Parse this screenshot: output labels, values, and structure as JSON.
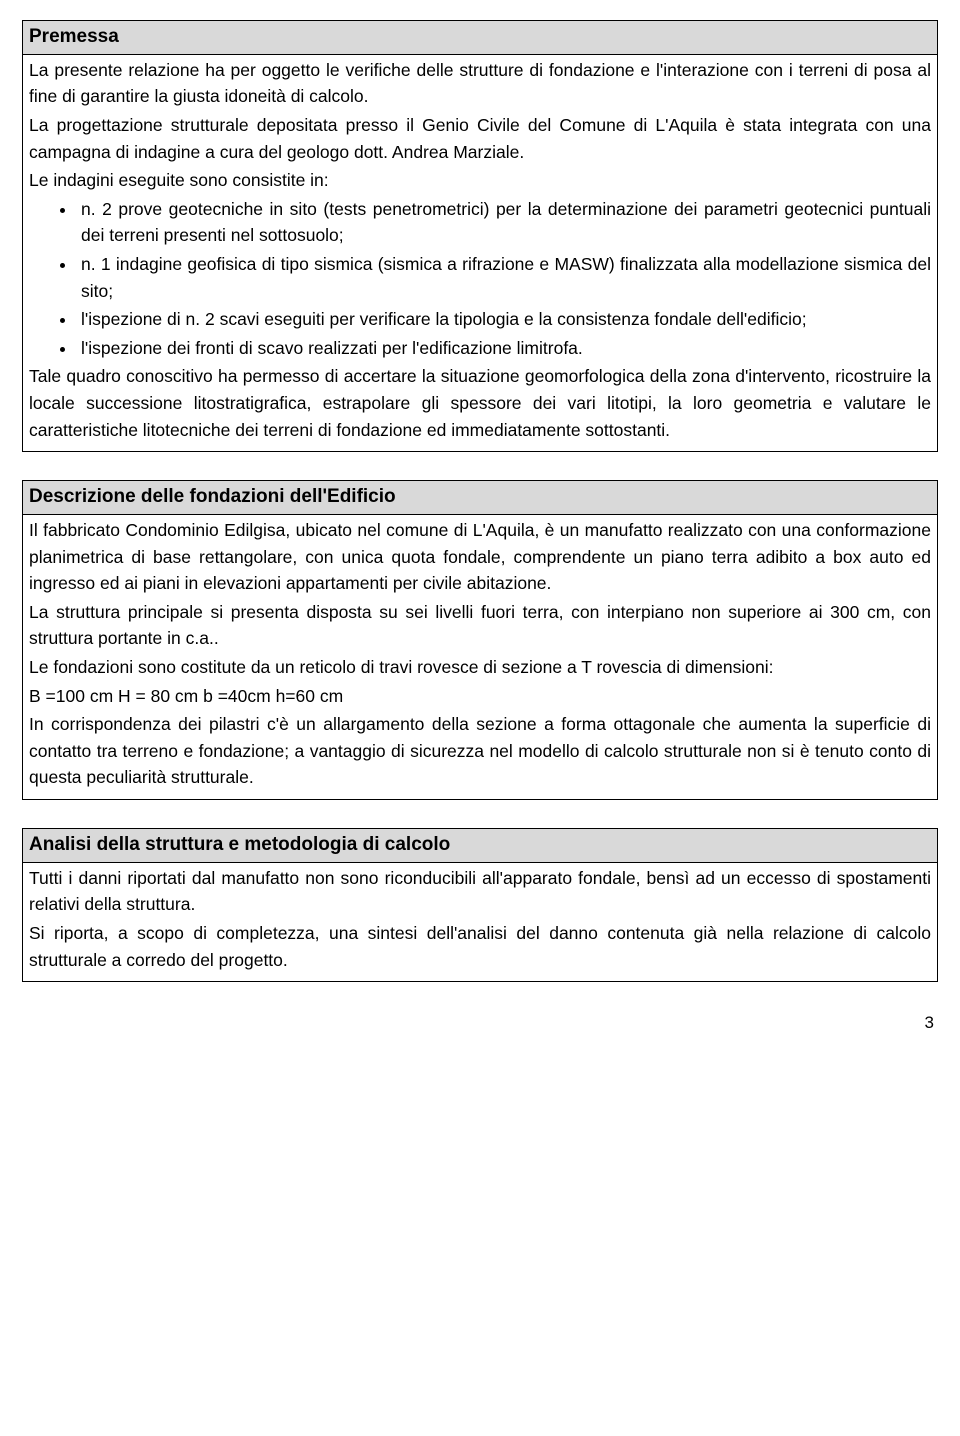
{
  "premessa": {
    "title": "Premessa",
    "p1": "La presente relazione ha per oggetto le verifiche delle strutture di fondazione e l'interazione con i terreni di posa al fine di garantire la giusta idoneità di calcolo.",
    "p2": "La  progettazione strutturale depositata presso il Genio Civile del Comune di L'Aquila è stata integrata con una campagna di indagine a cura del geologo dott. Andrea Marziale.",
    "p3": "Le indagini eseguite sono consistite in:",
    "b1": "n. 2 prove geotecniche in sito (tests penetrometrici) per la determinazione dei parametri geotecnici puntuali dei terreni presenti nel sottosuolo;",
    "b2": "n. 1 indagine geofisica di tipo sismica (sismica a rifrazione e MASW) finalizzata alla modellazione sismica del sito;",
    "b3": "l'ispezione di n. 2 scavi eseguiti per verificare la tipologia e la consistenza fondale dell'edificio;",
    "b4": "l'ispezione dei fronti di scavo realizzati per l'edificazione limitrofa.",
    "p4": "Tale quadro conoscitivo ha permesso di accertare la situazione geomorfologica della zona d'intervento, ricostruire la locale successione litostratigrafica, estrapolare gli spessore dei vari litotipi, la loro geometria e valutare le caratteristiche litotecniche dei terreni di fondazione ed immediatamente sottostanti."
  },
  "descrizione": {
    "title": "Descrizione  delle fondazioni dell'Edificio",
    "p1": "Il fabbricato Condominio Edilgisa, ubicato nel comune di L'Aquila, è un manufatto realizzato con una conformazione planimetrica di base rettangolare, con unica quota fondale, comprendente un piano terra adibito a box auto ed ingresso ed ai piani in elevazioni appartamenti per civile abitazione.",
    "p2": "La struttura principale si presenta disposta su  sei livelli fuori terra, con interpiano non superiore ai 300 cm, con struttura portante in c.a..",
    "p3": "Le fondazioni sono costitute da un reticolo di travi rovesce di sezione a T rovescia di dimensioni:",
    "p4": " B =100 cm H = 80 cm b =40cm h=60 cm",
    "p5": "In corrispondenza dei pilastri c'è un allargamento della sezione a forma ottagonale che aumenta la superficie di contatto tra terreno e fondazione; a vantaggio di sicurezza nel modello di calcolo strutturale non si è tenuto conto di questa peculiarità strutturale."
  },
  "analisi": {
    "title": "Analisi della struttura e metodologia di calcolo",
    "p1": "Tutti i danni riportati dal manufatto non sono riconducibili all'apparato fondale, bensì ad un eccesso di spostamenti relativi della struttura.",
    "p2": "Si riporta, a scopo di completezza, una sintesi dell'analisi del danno contenuta già nella relazione di calcolo strutturale a corredo del progetto."
  },
  "page_number": "3"
}
